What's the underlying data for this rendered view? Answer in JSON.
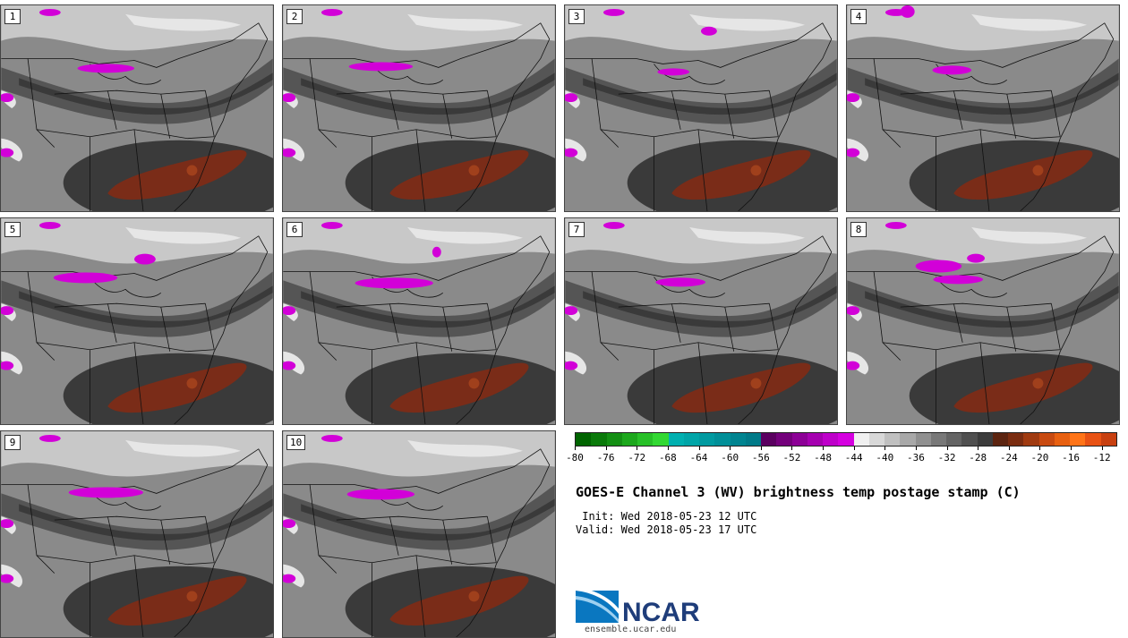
{
  "figure": {
    "title": "GOES-E Channel 3 (WV) brightness temp postage stamp (C)",
    "init_label": " Init:",
    "init_value": "Wed 2018-05-23 12 UTC",
    "valid_label": "Valid:",
    "valid_value": "Wed 2018-05-23 17 UTC"
  },
  "members": [
    {
      "label": "1"
    },
    {
      "label": "2"
    },
    {
      "label": "3"
    },
    {
      "label": "4"
    },
    {
      "label": "5"
    },
    {
      "label": "6"
    },
    {
      "label": "7"
    },
    {
      "label": "8"
    },
    {
      "label": "9"
    },
    {
      "label": "10"
    }
  ],
  "colorbar": {
    "units": "C",
    "tick_labels": [
      "-80",
      "-76",
      "-72",
      "-68",
      "-64",
      "-60",
      "-56",
      "-52",
      "-48",
      "-44",
      "-40",
      "-36",
      "-32",
      "-28",
      "-24",
      "-20",
      "-16",
      "-12"
    ],
    "min": -80,
    "max": -10,
    "step": 2,
    "colors": [
      "#006400",
      "#0a7a0a",
      "#138f13",
      "#1ca81c",
      "#27c027",
      "#32d832",
      "#00b0b0",
      "#00a5a8",
      "#009aa0",
      "#008f98",
      "#008490",
      "#007a88",
      "#5a0060",
      "#73007b",
      "#8c0096",
      "#a500b0",
      "#be00ca",
      "#d500e0",
      "#f0f0f0",
      "#d8d8d8",
      "#c0c0c0",
      "#a8a8a8",
      "#909090",
      "#787878",
      "#646464",
      "#505050",
      "#3c3c3c",
      "#5c2410",
      "#7a2c10",
      "#a03a10",
      "#c84a10",
      "#e86010",
      "#ff7418",
      "#e85214",
      "#c84010"
    ]
  },
  "logo": {
    "text": "NCAR",
    "url": "ensemble.ucar.edu",
    "primary_color": "#1f3d7a",
    "accent_color": "#0a77c0"
  },
  "map_colors": {
    "background": "#8a8a8a",
    "light": "#c8c8c8",
    "lighter": "#e6e6e6",
    "dark": "#555555",
    "darker": "#3a3a3a",
    "plume": "#7a2c18",
    "plume_edge": "#a0401c",
    "cold": "#d200d8",
    "outline": "#111111"
  }
}
